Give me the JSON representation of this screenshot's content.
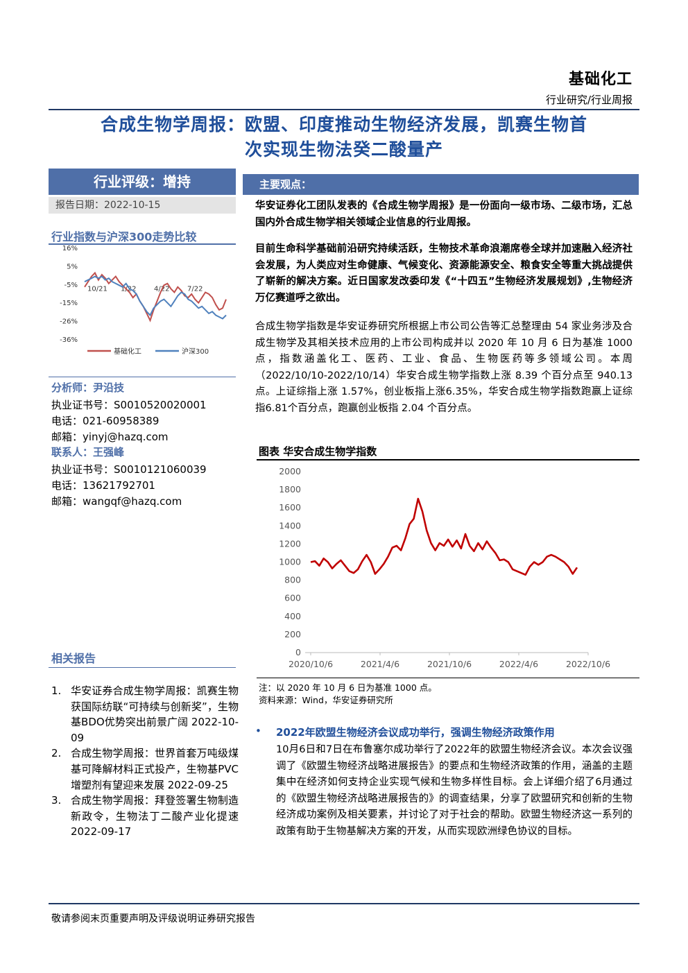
{
  "header": {
    "industry": "基础化工",
    "report_type": "行业研究/行业周报"
  },
  "title_lines": [
    "合成生物学周报：欧盟、印度推动生物经济发展，凯赛生物首",
    "次实现生物法癸二酸量产"
  ],
  "rating": "行业评级：增持",
  "report_date": "报告日期：2022-10-15",
  "index_compare": {
    "heading": "行业指数与沪深300走势比较",
    "chart_data": {
      "type": "line",
      "x_ticks": [
        "10/21",
        "1/22",
        "4/22",
        "7/22"
      ],
      "y_ticks": [
        "16%",
        "5%",
        "-5%",
        "-15%",
        "-26%",
        "-36%"
      ],
      "ylim": [
        -36,
        16
      ],
      "series": [
        {
          "name": "基础化工",
          "color": "#c0504d",
          "values": [
            -6,
            -3,
            0,
            2,
            -2,
            1,
            -1,
            -4,
            -2,
            0,
            -3,
            -5,
            -7,
            -9,
            -12,
            -10,
            -14,
            -17,
            -21,
            -25,
            -19,
            -14,
            -9,
            -5,
            -4,
            -7,
            -9,
            -6,
            -8,
            -11,
            -12,
            -10,
            -13,
            -15,
            -12,
            -9,
            -10,
            -12,
            -16,
            -19,
            -18,
            -13
          ]
        },
        {
          "name": "沪深300",
          "color": "#4f81bd",
          "values": [
            -3,
            -2,
            -1,
            0,
            -1,
            0,
            -2,
            -1,
            -3,
            -4,
            -5,
            -6,
            -4,
            -7,
            -8,
            -10,
            -14,
            -17,
            -20,
            -22,
            -18,
            -16,
            -14,
            -13,
            -15,
            -17,
            -14,
            -11,
            -9,
            -10,
            -13,
            -14,
            -16,
            -18,
            -17,
            -19,
            -21,
            -20,
            -22,
            -23,
            -24,
            -22
          ]
        }
      ]
    }
  },
  "analyst": {
    "label": "分析师：尹沿技",
    "cert": "执业证书号：S0010520020001",
    "phone": "电话：021-60958389",
    "email": "邮箱：yinyj@hazq.com"
  },
  "contact": {
    "label": "联系人：王强峰",
    "cert": "执业证书号：S0010121060039",
    "phone": "电话：13621792701",
    "email": "邮箱：wangqf@hazq.com"
  },
  "related": {
    "heading": "相关报告",
    "items": [
      {
        "num": "1.",
        "text": "华安证券合成生物学周报：凯赛生物获国际纺联“可持续与创新奖”，生物基BDO优势突出前景广阔 2022-10-09"
      },
      {
        "num": "2.",
        "text": "合成生物学周报：世界首套万吨级煤基可降解材料正式投产，生物基PVC增塑剂有望迎来发展 2022-09-25"
      },
      {
        "num": "3.",
        "text": "合成生物学周报：拜登签署生物制造新政令，生物法丁二酸产业化提速 2022-09-17"
      }
    ]
  },
  "viewpoint": {
    "label": "主要观点：",
    "para1": "华安证券化工团队发表的《合成生物学周报》是一份面向一级市场、二级市场，汇总国内外合成生物学相关领域企业信息的行业周报。",
    "para2": "目前生命科学基础前沿研究持续活跃，生物技术革命浪潮席卷全球并加速融入经济社会发展，为人类应对生命健康、气候变化、资源能源安全、粮食安全等重大挑战提供了崭新的解决方案。近日国家发改委印发《“十四五”生物经济发展规划》,生物经济万亿赛道呼之欲出。",
    "para3": "合成生物学指数是华安证券研究所根据上市公司公告等汇总整理由 54 家业务涉及合成生物学及其相关技术应用的上市公司构成并以 2020 年 10 月 6 日为基准 1000 点，指数涵盖化工、医药、工业、食品、生物医药等多领域公司。本周（2022/10/10-2022/10/14）华安合成生物学指数上涨 8.39 个百分点至 940.13 点。上证综指上涨 1.57%，创业板指上涨6.35%，华安合成生物学指数跑赢上证综指6.81个百分点，跑赢创业板指 2.04 个百分点。"
  },
  "main_chart": {
    "title": "图表 华安合成生物学指数",
    "chart_data": {
      "type": "line",
      "x_ticks": [
        "2020/10/6",
        "2021/4/6",
        "2021/10/6",
        "2022/4/6",
        "2022/10/6"
      ],
      "y_ticks": [
        "2000",
        "1800",
        "1600",
        "1400",
        "1200",
        "1000",
        "800",
        "600",
        "400",
        "200",
        "0"
      ],
      "ylim": [
        0,
        2000
      ],
      "color": "#c00000",
      "values": [
        1000,
        1010,
        960,
        1040,
        1000,
        930,
        980,
        1020,
        960,
        900,
        880,
        920,
        1010,
        1080,
        1000,
        870,
        920,
        980,
        1060,
        1160,
        1180,
        1130,
        1260,
        1420,
        1480,
        1700,
        1560,
        1350,
        1210,
        1130,
        1210,
        1180,
        1250,
        1170,
        1240,
        1150,
        1310,
        1180,
        1120,
        1210,
        1140,
        1230,
        1160,
        1100,
        1020,
        1030,
        1000,
        920,
        900,
        880,
        860,
        950,
        1000,
        970,
        1000,
        1060,
        1080,
        1060,
        1030,
        1000,
        950,
        870,
        940
      ]
    },
    "note": "注：以 2020 年 10 月 6 日为基准 1000 点。",
    "source": "资料来源：Wind，华安证券研究所"
  },
  "bullet": {
    "heading": "2022年欧盟生物经济会议成功举行，强调生物经济政策作用",
    "text": "10月6日和7日在布鲁塞尔成功举行了2022年的欧盟生物经济会议。本次会议强调了《欧盟生物经济战略进展报告》的要点和生物经济政策的作用，涵盖的主题集中在经济如何支持企业实现气候和生物多样性目标。会上详细介绍了6月通过的《欧盟生物经济战略进展报告的》的调查结果，分享了欧盟研究和创新的生物经济成功案例及相关要素，并讨论了对于社会的帮助。欧盟生物经济这一系列的政策有助于生物基解决方案的开发，从而实现欧洲绿色协议的目标。"
  },
  "footer": "敬请参阅末页重要声明及评级说明证券研究报告"
}
